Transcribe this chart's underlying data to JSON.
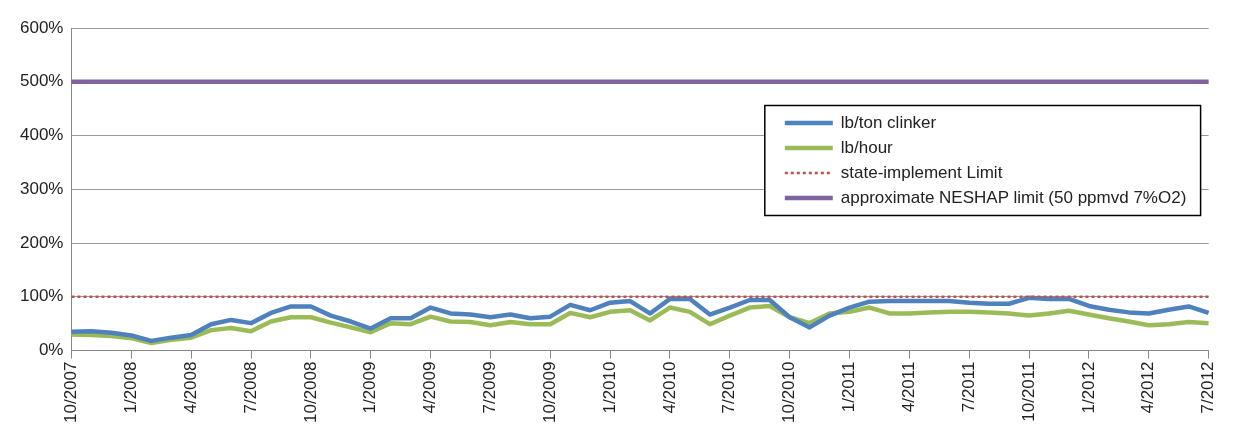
{
  "chart_data": {
    "type": "line",
    "categories": [
      "10/2007",
      null,
      null,
      "1/2008",
      null,
      null,
      "4/2008",
      null,
      null,
      "7/2008",
      null,
      null,
      "10/2008",
      null,
      null,
      "1/2009",
      null,
      null,
      "4/2009",
      null,
      null,
      "7/2009",
      null,
      null,
      "10/2009",
      null,
      null,
      "1/2010",
      null,
      null,
      "4/2010",
      null,
      null,
      "7/2010",
      null,
      null,
      "10/2010",
      null,
      null,
      "1/2011",
      null,
      null,
      "4/2011",
      null,
      null,
      "7/2011",
      null,
      null,
      "10/2011",
      null,
      null,
      "1/2012",
      null,
      null,
      "4/2012",
      null,
      null,
      "7/2012"
    ],
    "series": [
      {
        "name": "lb/ton clinker",
        "color": "#4f81bd",
        "values": [
          35,
          36,
          33,
          28,
          18,
          24,
          29,
          49,
          57,
          51,
          70,
          82,
          82,
          65,
          54,
          41,
          60,
          60,
          80,
          69,
          67,
          62,
          67,
          60,
          63,
          85,
          75,
          89,
          92,
          69,
          96,
          96,
          67,
          80,
          94,
          94,
          62,
          43,
          65,
          80,
          91,
          92,
          92,
          92,
          92,
          89,
          87,
          87,
          98,
          96,
          96,
          83,
          76,
          71,
          69,
          76,
          82,
          70
        ]
      },
      {
        "name": "lb/hour",
        "color": "#9bbb59",
        "values": [
          30,
          29,
          27,
          23,
          14,
          20,
          24,
          38,
          42,
          36,
          54,
          62,
          62,
          52,
          43,
          34,
          51,
          49,
          63,
          54,
          53,
          47,
          53,
          49,
          49,
          70,
          62,
          72,
          75,
          56,
          80,
          72,
          49,
          65,
          80,
          83,
          62,
          51,
          69,
          72,
          80,
          69,
          69,
          71,
          72,
          72,
          71,
          69,
          65,
          69,
          74,
          67,
          60,
          54,
          47,
          49,
          53,
          51
        ]
      }
    ],
    "ref_lines": [
      {
        "axis": "y",
        "value": 100,
        "label": "state-implement Limit",
        "color": "#c0504d",
        "line_style": "dotted"
      },
      {
        "axis": "y",
        "value": 500,
        "label": "approximate NESHAP limit (50 ppmvd 7%O2)",
        "color": "#8064a2",
        "line_style": "solid"
      }
    ],
    "ylim": [
      0,
      600
    ],
    "yticks": [
      {
        "value": 0,
        "label": "0%"
      },
      {
        "value": 100,
        "label": "100%"
      },
      {
        "value": 200,
        "label": "200%"
      },
      {
        "value": 300,
        "label": "300%"
      },
      {
        "value": 400,
        "label": "400%"
      },
      {
        "value": 500,
        "label": "500%"
      },
      {
        "value": 600,
        "label": "600%"
      }
    ],
    "grid": "y",
    "legend": "right",
    "marker": "none",
    "line_style": "solid"
  }
}
